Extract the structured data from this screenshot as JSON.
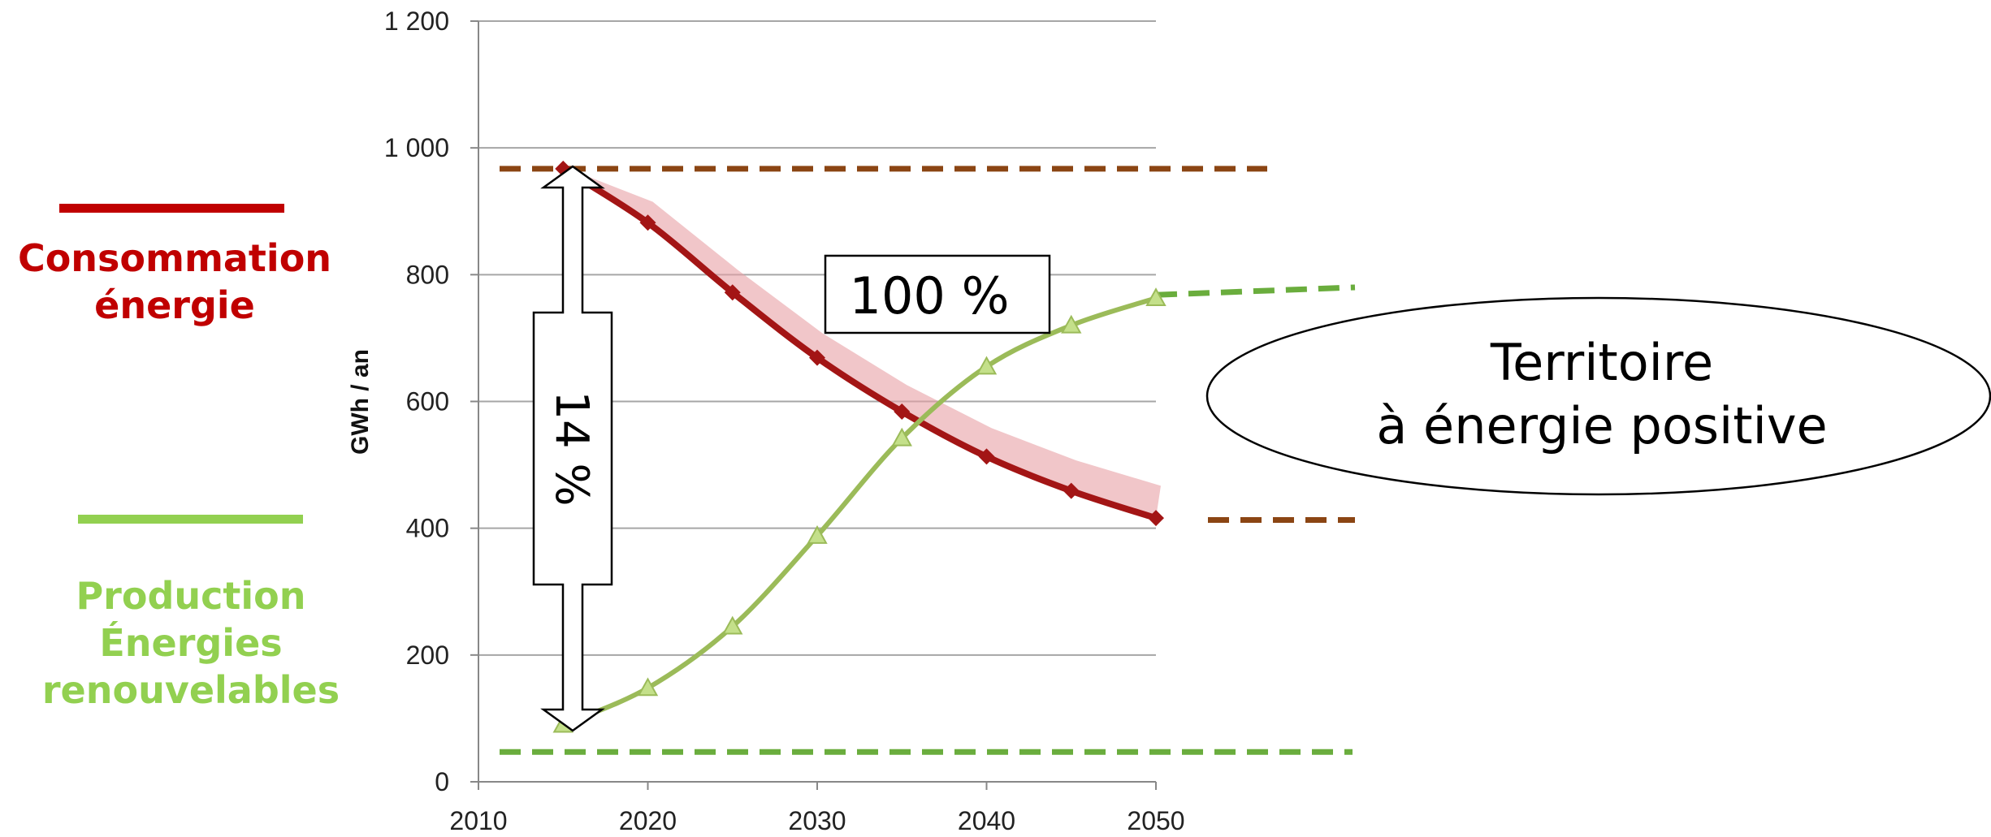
{
  "chart_data": {
    "type": "line",
    "xlabel": "",
    "ylabel": "GWh / an",
    "xlim": [
      2010,
      2050
    ],
    "ylim": [
      0,
      1200
    ],
    "x_ticks": [
      "2010",
      "2020",
      "2030",
      "2040",
      "2050"
    ],
    "y_ticks": [
      "0",
      "200",
      "400",
      "600",
      "800",
      "1 000",
      "1 200"
    ],
    "grid": true,
    "legend": [
      {
        "text": "Consommation\nénergie",
        "color": "#c00000",
        "placement": "left-upper"
      },
      {
        "text": "Production\nÉnergies\nrenouvelables",
        "color": "#92d050",
        "placement": "left-lower"
      }
    ],
    "series": [
      {
        "color": "#a31515",
        "marker": "diamond",
        "x": [
          2015,
          2020,
          2025,
          2030,
          2035,
          2040,
          2045,
          2050
        ],
        "y": [
          967,
          882,
          772,
          669,
          584,
          513,
          459,
          416
        ]
      },
      {
        "color": "#9bbb59",
        "marker": "triangle",
        "x": [
          2015,
          2020,
          2025,
          2030,
          2035,
          2040,
          2045,
          2050
        ],
        "y": [
          90,
          148,
          245,
          388,
          542,
          655,
          720,
          763
        ]
      }
    ],
    "reference_lines": [
      {
        "y": 967,
        "color": "#8b4513",
        "style": "dashed"
      },
      {
        "y": 413,
        "color": "#8b4513",
        "style": "dashed"
      },
      {
        "y": 47,
        "color": "#6aad3d",
        "style": "dashed"
      }
    ],
    "annotations": [
      {
        "text": "14 %",
        "type": "double-arrow-vertical-text"
      },
      {
        "text": "100 %",
        "type": "box"
      },
      {
        "text": "Territoire\nà énergie positive",
        "type": "ellipse"
      }
    ],
    "colors": {
      "consumption": "#c00000",
      "production": "#92d050",
      "grid": "#a6a6a6"
    }
  }
}
